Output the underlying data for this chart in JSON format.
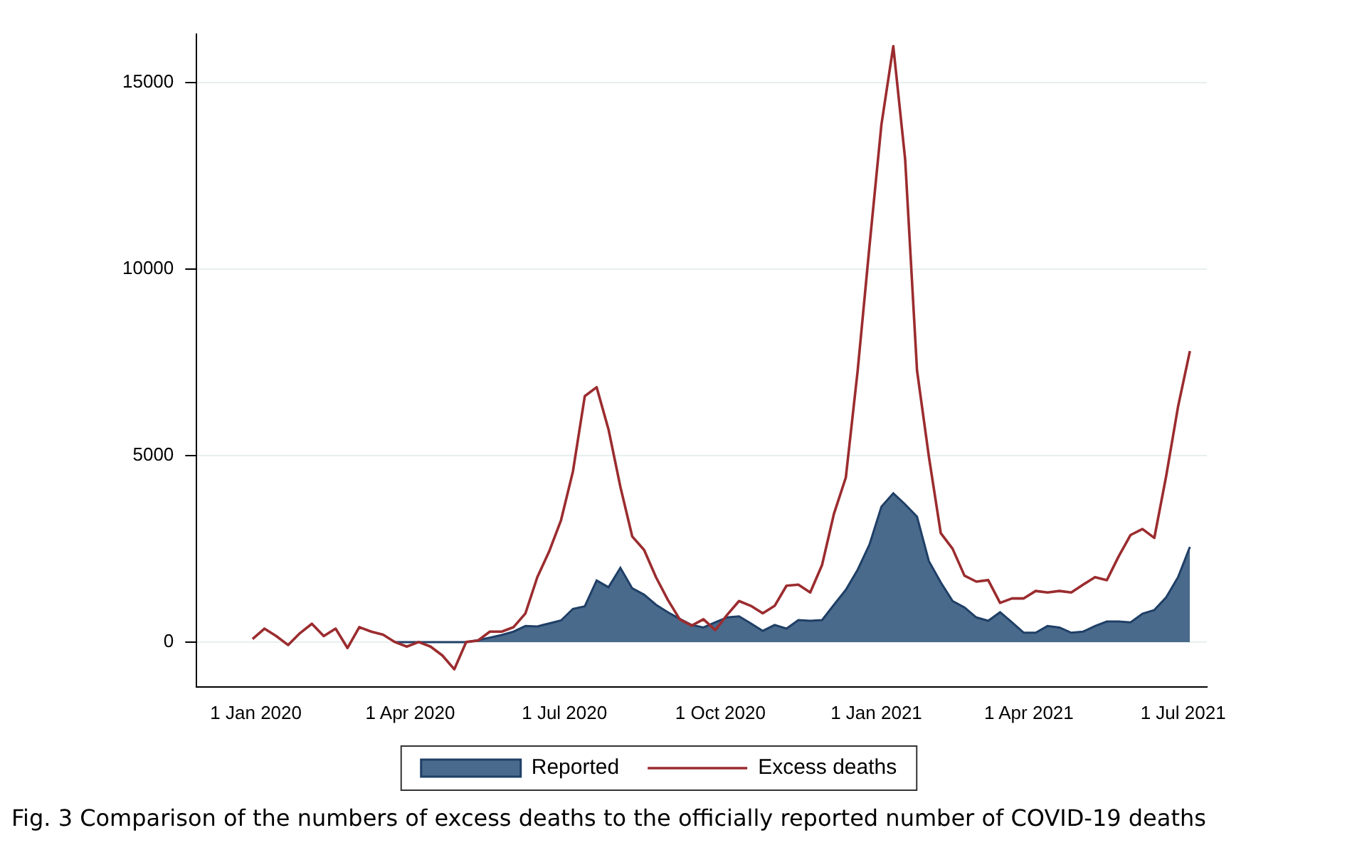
{
  "chart_data": {
    "type": "line",
    "x": [
      "2019-12-30",
      "2020-01-06",
      "2020-01-13",
      "2020-01-20",
      "2020-01-27",
      "2020-02-03",
      "2020-02-10",
      "2020-02-17",
      "2020-02-24",
      "2020-03-02",
      "2020-03-09",
      "2020-03-16",
      "2020-03-23",
      "2020-03-30",
      "2020-04-06",
      "2020-04-13",
      "2020-04-20",
      "2020-04-27",
      "2020-05-04",
      "2020-05-11",
      "2020-05-18",
      "2020-05-25",
      "2020-06-01",
      "2020-06-08",
      "2020-06-15",
      "2020-06-22",
      "2020-06-29",
      "2020-07-06",
      "2020-07-13",
      "2020-07-20",
      "2020-07-27",
      "2020-08-03",
      "2020-08-10",
      "2020-08-17",
      "2020-08-24",
      "2020-08-31",
      "2020-09-07",
      "2020-09-14",
      "2020-09-21",
      "2020-09-28",
      "2020-10-05",
      "2020-10-12",
      "2020-10-19",
      "2020-10-26",
      "2020-11-02",
      "2020-11-09",
      "2020-11-16",
      "2020-11-23",
      "2020-11-30",
      "2020-12-07",
      "2020-12-14",
      "2020-12-21",
      "2020-12-28",
      "2021-01-04",
      "2021-01-11",
      "2021-01-18",
      "2021-01-25",
      "2021-02-01",
      "2021-02-08",
      "2021-02-15",
      "2021-02-22",
      "2021-03-01",
      "2021-03-08",
      "2021-03-15",
      "2021-03-22",
      "2021-03-29",
      "2021-04-05",
      "2021-04-12",
      "2021-04-19",
      "2021-04-26",
      "2021-05-03",
      "2021-05-10",
      "2021-05-17",
      "2021-05-24",
      "2021-05-31",
      "2021-06-07",
      "2021-06-14",
      "2021-06-21",
      "2021-06-28",
      "2021-07-05"
    ],
    "series": [
      {
        "name": "Reported",
        "type": "area",
        "color": "#4a6a8c",
        "values": [
          null,
          null,
          null,
          null,
          null,
          null,
          null,
          null,
          null,
          null,
          null,
          null,
          0,
          0,
          0,
          0,
          0,
          0,
          0,
          50,
          120,
          190,
          280,
          430,
          420,
          500,
          580,
          890,
          960,
          1650,
          1470,
          1990,
          1440,
          1270,
          1000,
          800,
          620,
          460,
          390,
          530,
          660,
          690,
          500,
          300,
          460,
          360,
          590,
          570,
          590,
          1000,
          1400,
          1940,
          2620,
          3630,
          3990,
          3690,
          3360,
          2170,
          1600,
          1100,
          930,
          660,
          570,
          800,
          530,
          250,
          250,
          430,
          390,
          250,
          280,
          430,
          550,
          550,
          530,
          760,
          860,
          1200,
          1740,
          2550
        ]
      },
      {
        "name": "Excess deaths",
        "type": "line",
        "color": "#9b2c2f",
        "values": [
          80,
          360,
          160,
          -80,
          240,
          490,
          160,
          360,
          -160,
          400,
          280,
          200,
          0,
          -120,
          0,
          -120,
          -360,
          -730,
          0,
          40,
          280,
          280,
          400,
          770,
          1740,
          2430,
          3270,
          4570,
          6590,
          6830,
          5700,
          4160,
          2830,
          2470,
          1740,
          1130,
          610,
          440,
          610,
          320,
          730,
          1100,
          970,
          770,
          970,
          1510,
          1540,
          1330,
          2070,
          3440,
          4410,
          7280,
          10630,
          13870,
          15970,
          12940,
          7280,
          4970,
          2920,
          2500,
          1780,
          1620,
          1660,
          1050,
          1170,
          1170,
          1370,
          1330,
          1370,
          1330,
          1540,
          1740,
          1660,
          2300,
          2870,
          3030,
          2790,
          4450,
          6310,
          7800
        ]
      }
    ],
    "xlim": [
      "2019-11-27",
      "2021-07-15"
    ],
    "xticks": [
      {
        "value": "2020-01-01",
        "label": "1 Jan 2020"
      },
      {
        "value": "2020-04-01",
        "label": "1 Apr 2020"
      },
      {
        "value": "2020-07-01",
        "label": "1 Jul 2020"
      },
      {
        "value": "2020-10-01",
        "label": "1 Oct 2020"
      },
      {
        "value": "2021-01-01",
        "label": "1 Jan 2021"
      },
      {
        "value": "2021-04-01",
        "label": "1 Apr 2021"
      },
      {
        "value": "2021-07-01",
        "label": "1 Jul 2021"
      }
    ],
    "ylim": [
      -1200,
      16300
    ],
    "yticks": [
      0,
      5000,
      10000,
      15000
    ],
    "grid": "y",
    "legend": "bottom",
    "annotations": [
      "Fig. 3  Comparison of the numbers of excess deaths to the officially reported number of COVID-19 deaths"
    ]
  }
}
